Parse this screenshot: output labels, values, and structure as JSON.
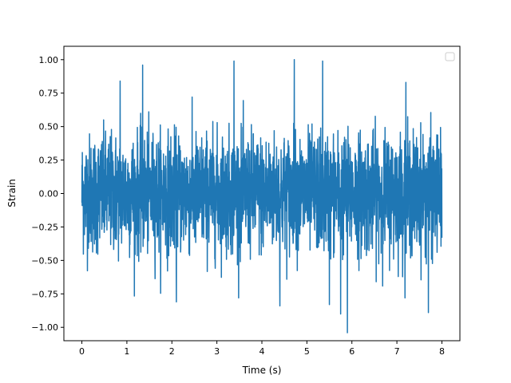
{
  "chart_data": {
    "type": "line",
    "title": "",
    "xlabel": "Time (s)",
    "ylabel": "Strain",
    "xlim": [
      -0.4,
      8.4
    ],
    "ylim": [
      -1.1,
      1.1
    ],
    "x_ticks": [
      "0",
      "1",
      "2",
      "3",
      "4",
      "5",
      "6",
      "7",
      "8"
    ],
    "y_ticks": [
      "−1.00",
      "−0.75",
      "−0.50",
      "−0.25",
      "0.00",
      "0.25",
      "0.50",
      "0.75",
      "1.00"
    ],
    "grid": false,
    "legend": {
      "placement": "top-right",
      "entries": []
    },
    "series": [
      {
        "color": "#1f77b4",
        "x_start": 0,
        "x_end": 8,
        "y_envelope_typical": [
          -0.5,
          0.5
        ],
        "notable_points": [
          {
            "x": 1.35,
            "y": 0.96
          },
          {
            "x": 3.38,
            "y": 0.99
          },
          {
            "x": 4.72,
            "y": 1.0
          },
          {
            "x": 5.35,
            "y": 0.99
          },
          {
            "x": 5.9,
            "y": -1.04
          },
          {
            "x": 0.85,
            "y": 0.84
          },
          {
            "x": 2.1,
            "y": -0.81
          },
          {
            "x": 7.7,
            "y": -0.89
          },
          {
            "x": 5.75,
            "y": -0.9
          },
          {
            "x": 4.4,
            "y": -0.84
          },
          {
            "x": 5.5,
            "y": -0.83
          },
          {
            "x": 7.2,
            "y": 0.83
          }
        ]
      }
    ]
  }
}
